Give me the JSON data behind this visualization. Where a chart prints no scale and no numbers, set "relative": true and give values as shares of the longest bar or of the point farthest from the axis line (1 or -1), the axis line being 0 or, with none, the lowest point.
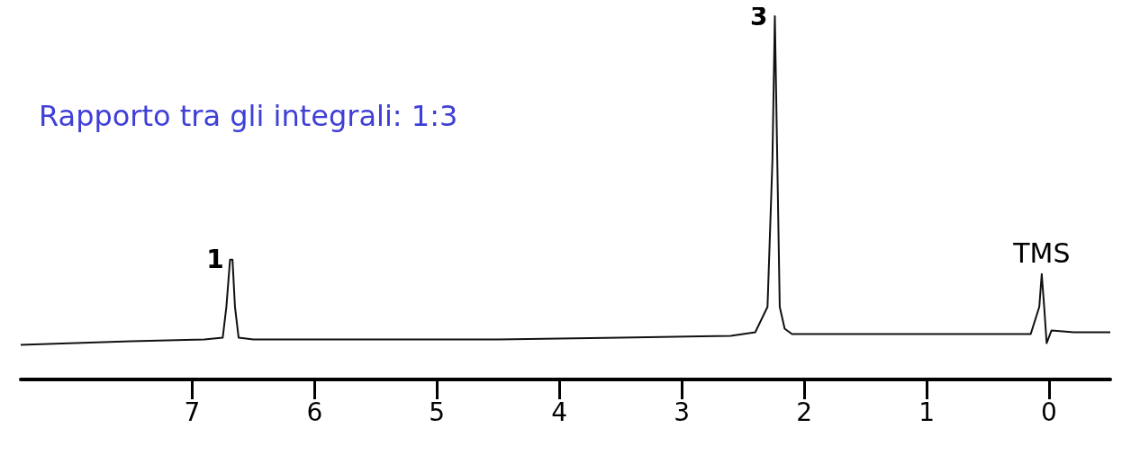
{
  "chart_data": {
    "type": "line",
    "relative": true,
    "title": "Rapporto tra gli integrali: 1:3",
    "x": [
      8.4,
      7.5,
      6.9,
      6.75,
      6.72,
      6.69,
      6.67,
      6.65,
      6.62,
      6.5,
      5.5,
      4.5,
      3.5,
      2.6,
      2.4,
      2.3,
      2.26,
      2.24,
      2.22,
      2.2,
      2.16,
      2.1,
      1.5,
      0.5,
      0.15,
      0.08,
      0.06,
      0.04,
      0.02,
      -0.02,
      -0.2,
      -0.5
    ],
    "series": [
      {
        "color": "#111111",
        "values": [
          0.095,
          0.105,
          0.11,
          0.115,
          0.2,
          0.33,
          0.33,
          0.2,
          0.115,
          0.11,
          0.11,
          0.11,
          0.115,
          0.12,
          0.13,
          0.2,
          0.6,
          1.0,
          0.6,
          0.2,
          0.14,
          0.125,
          0.125,
          0.125,
          0.125,
          0.2,
          0.29,
          0.2,
          0.1,
          0.135,
          0.13,
          0.13
        ]
      }
    ],
    "xlim": [
      8.4,
      -0.5
    ],
    "xticks": [
      7,
      6,
      5,
      4,
      3,
      2,
      1,
      0
    ],
    "grid": false,
    "marker": "none",
    "line_style": "solid",
    "annotations": [
      {
        "text": "1",
        "x": 6.68,
        "y": 0.33
      },
      {
        "text": "3",
        "x": 2.24,
        "y": 1.0
      },
      {
        "text": "TMS",
        "x": 0.06,
        "y": 0.29
      }
    ]
  }
}
